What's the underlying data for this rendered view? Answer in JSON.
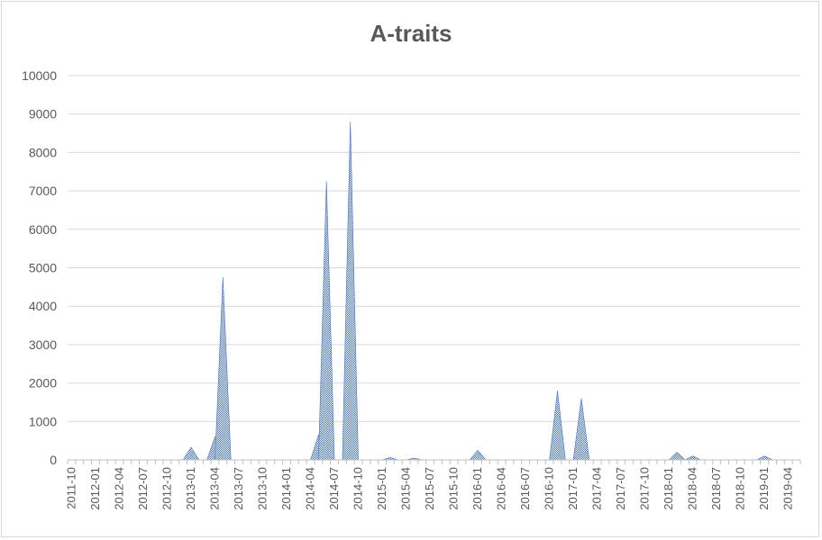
{
  "chart_data": {
    "type": "area",
    "title": "A-traits",
    "xlabel": "",
    "ylabel": "",
    "ylim": [
      0,
      10000
    ],
    "yticks": [
      0,
      1000,
      2000,
      3000,
      4000,
      5000,
      6000,
      7000,
      8000,
      9000,
      10000
    ],
    "grid": true,
    "legend": "none",
    "x_tick_labels": [
      "2011-10",
      "2012-01",
      "2012-04",
      "2012-07",
      "2012-10",
      "2013-01",
      "2013-04",
      "2013-07",
      "2013-10",
      "2014-01",
      "2014-04",
      "2014-07",
      "2014-10",
      "2015-01",
      "2015-04",
      "2015-07",
      "2015-10",
      "2016-01",
      "2016-04",
      "2016-07",
      "2016-10",
      "2017-01",
      "2017-04",
      "2017-07",
      "2017-10",
      "2018-01",
      "2018-04",
      "2018-07",
      "2018-10",
      "2019-01",
      "2019-04"
    ],
    "x": [
      "2011-10",
      "2011-11",
      "2011-12",
      "2012-01",
      "2012-02",
      "2012-03",
      "2012-04",
      "2012-05",
      "2012-06",
      "2012-07",
      "2012-08",
      "2012-09",
      "2012-10",
      "2012-11",
      "2012-12",
      "2013-01",
      "2013-02",
      "2013-03",
      "2013-04",
      "2013-05",
      "2013-06",
      "2013-07",
      "2013-08",
      "2013-09",
      "2013-10",
      "2013-11",
      "2013-12",
      "2014-01",
      "2014-02",
      "2014-03",
      "2014-04",
      "2014-05",
      "2014-06",
      "2014-07",
      "2014-08",
      "2014-09",
      "2014-10",
      "2014-11",
      "2014-12",
      "2015-01",
      "2015-02",
      "2015-03",
      "2015-04",
      "2015-05",
      "2015-06",
      "2015-07",
      "2015-08",
      "2015-09",
      "2015-10",
      "2015-11",
      "2015-12",
      "2016-01",
      "2016-02",
      "2016-03",
      "2016-04",
      "2016-05",
      "2016-06",
      "2016-07",
      "2016-08",
      "2016-09",
      "2016-10",
      "2016-11",
      "2016-12",
      "2017-01",
      "2017-02",
      "2017-03",
      "2017-04",
      "2017-05",
      "2017-06",
      "2017-07",
      "2017-08",
      "2017-09",
      "2017-10",
      "2017-11",
      "2017-12",
      "2018-01",
      "2018-02",
      "2018-03",
      "2018-04",
      "2018-05",
      "2018-06",
      "2018-07",
      "2018-08",
      "2018-09",
      "2018-10",
      "2018-11",
      "2018-12",
      "2019-01",
      "2019-02",
      "2019-03",
      "2019-04",
      "2019-05"
    ],
    "series": [
      {
        "values": [
          0,
          0,
          0,
          0,
          0,
          0,
          0,
          0,
          0,
          0,
          0,
          0,
          0,
          0,
          0,
          330,
          0,
          0,
          600,
          4750,
          0,
          0,
          0,
          0,
          0,
          0,
          0,
          0,
          0,
          0,
          0,
          650,
          7250,
          0,
          0,
          8800,
          0,
          0,
          0,
          0,
          60,
          0,
          0,
          50,
          0,
          0,
          0,
          0,
          0,
          0,
          0,
          250,
          0,
          0,
          0,
          0,
          0,
          0,
          0,
          0,
          0,
          1800,
          0,
          0,
          1600,
          0,
          0,
          0,
          0,
          0,
          0,
          0,
          0,
          0,
          0,
          0,
          200,
          0,
          100,
          0,
          0,
          0,
          0,
          0,
          0,
          0,
          0,
          100,
          0,
          0,
          0,
          0
        ],
        "color": "#4472c4"
      }
    ],
    "colors": {
      "grid": "#d9d9d9",
      "axis": "#bfbfbf",
      "text": "#595959",
      "title": "#595959",
      "fill": "#4472c4"
    }
  }
}
